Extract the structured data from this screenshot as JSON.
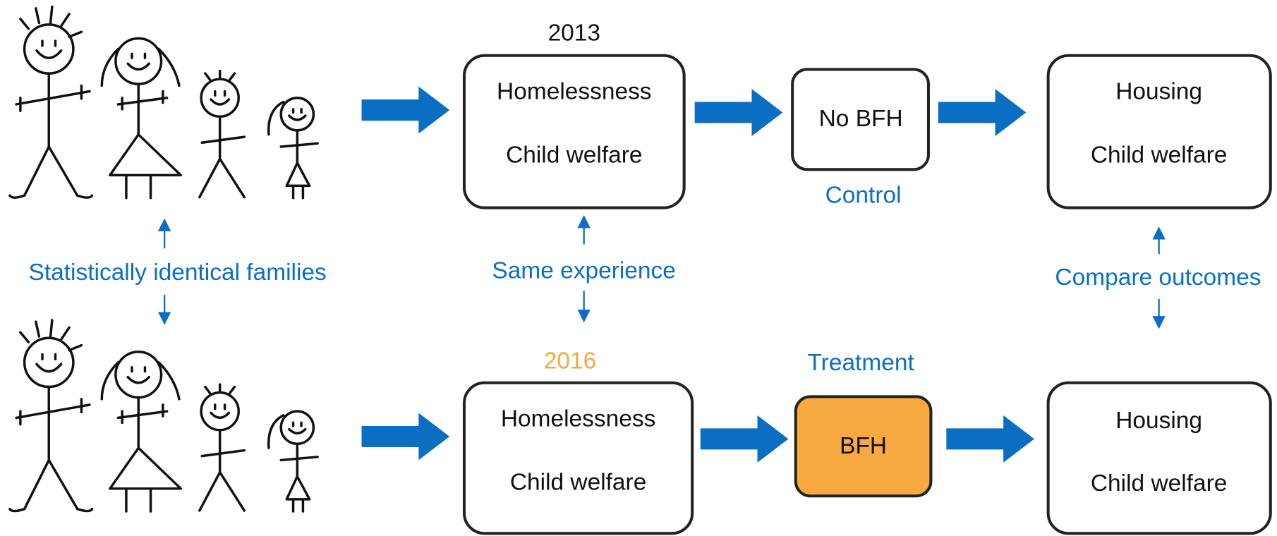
{
  "top": {
    "year": "2013",
    "box": [
      "Homelessness",
      "Child welfare"
    ],
    "intervention": "No BFH",
    "group": "Control",
    "outcome": [
      "Housing",
      "Child welfare"
    ]
  },
  "bottom": {
    "year": "2016",
    "box": [
      "Homelessness",
      "Child welfare"
    ],
    "intervention": "BFH",
    "group": "Treatment",
    "outcome": [
      "Housing",
      "Child welfare"
    ]
  },
  "annotations": {
    "families": "Statistically identical families",
    "experience": "Same experience",
    "compare": "Compare outcomes"
  }
}
